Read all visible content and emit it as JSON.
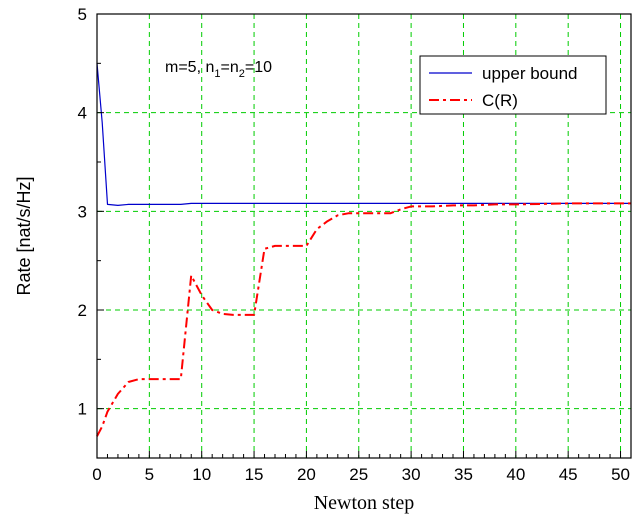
{
  "chart_data": {
    "type": "line",
    "xlabel": "Newton step",
    "ylabel": "Rate [nat/s/Hz]",
    "xlim": [
      0,
      51
    ],
    "ylim": [
      0.5,
      5
    ],
    "xticks": [
      0,
      5,
      10,
      15,
      20,
      25,
      30,
      35,
      40,
      45,
      50
    ],
    "yticks": [
      1,
      2,
      3,
      4,
      5
    ],
    "grid": true,
    "legend_position": "top-right",
    "annotation": {
      "m": "m=5, n",
      "sub1": "1",
      "eq": "=n",
      "sub2": "2",
      "val": "=10"
    },
    "series": [
      {
        "name": "upper bound",
        "color": "#0000cc",
        "style": "solid",
        "x": [
          0,
          0.5,
          1,
          2,
          3,
          4,
          5,
          6,
          7,
          8,
          9,
          10,
          12,
          14,
          15,
          17,
          20,
          25,
          30,
          35,
          40,
          45,
          51
        ],
        "y": [
          4.5,
          3.9,
          3.07,
          3.06,
          3.07,
          3.07,
          3.07,
          3.07,
          3.07,
          3.07,
          3.08,
          3.08,
          3.08,
          3.08,
          3.08,
          3.08,
          3.08,
          3.08,
          3.08,
          3.08,
          3.08,
          3.08,
          3.08
        ]
      },
      {
        "name": "C(R)",
        "color": "#ff0000",
        "style": "dashdot",
        "x": [
          0,
          0.5,
          1,
          2,
          3,
          4,
          5,
          6,
          7,
          8,
          9,
          10,
          11,
          12,
          13,
          14,
          15,
          16,
          17,
          18,
          19,
          20,
          21,
          22,
          23,
          24,
          25,
          26,
          27,
          28,
          29,
          30,
          32,
          34,
          36,
          38,
          40,
          45,
          51
        ],
        "y": [
          0.72,
          0.82,
          0.97,
          1.15,
          1.27,
          1.3,
          1.3,
          1.3,
          1.3,
          1.3,
          2.35,
          2.15,
          2.0,
          1.96,
          1.95,
          1.95,
          1.95,
          2.62,
          2.65,
          2.65,
          2.65,
          2.65,
          2.82,
          2.9,
          2.96,
          2.98,
          2.98,
          2.98,
          2.98,
          2.98,
          3.02,
          3.05,
          3.05,
          3.06,
          3.06,
          3.07,
          3.07,
          3.08,
          3.08
        ]
      }
    ]
  }
}
